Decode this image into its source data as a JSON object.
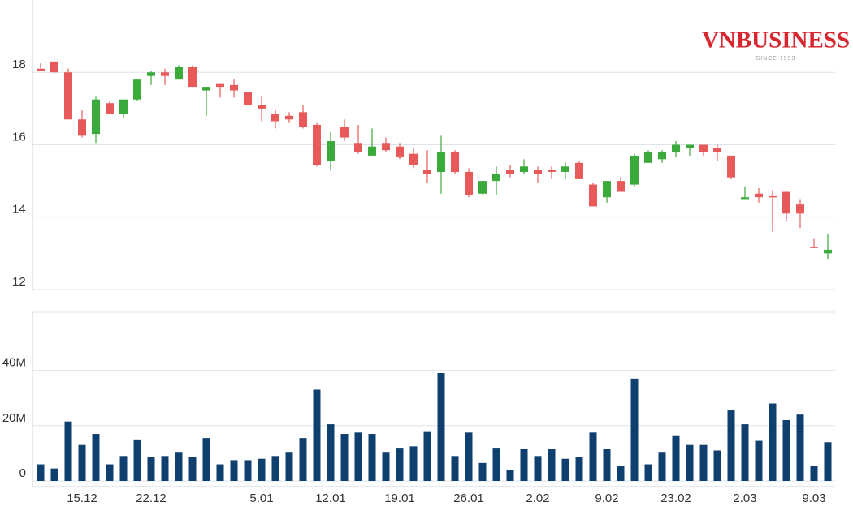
{
  "logo": {
    "text": "VNBUSINESS",
    "tagline": "SINCE 1993"
  },
  "chart_data": [
    {
      "type": "candlestick",
      "up_color": "#3aaa3a",
      "down_color": "#e85a5a",
      "open": [
        18.1,
        18.3,
        18.0,
        16.7,
        16.3,
        17.15,
        16.85,
        17.25,
        17.9,
        18.0,
        17.8,
        18.15,
        17.5,
        17.7,
        17.65,
        17.45,
        17.1,
        16.85,
        16.8,
        16.9,
        16.55,
        15.55,
        16.5,
        16.05,
        15.7,
        16.05,
        15.95,
        15.75,
        15.3,
        15.25,
        15.8,
        15.25,
        14.65,
        15.0,
        15.3,
        15.25,
        15.3,
        15.3,
        15.25,
        15.5,
        14.9,
        14.55,
        15.0,
        14.9,
        15.5,
        15.6,
        15.8,
        15.9,
        16.0,
        15.9,
        15.7,
        14.5,
        14.65,
        14.58,
        14.7,
        14.35,
        13.18,
        13.0
      ],
      "high": [
        18.25,
        18.3,
        18.1,
        16.95,
        17.35,
        17.2,
        17.25,
        17.8,
        18.05,
        18.1,
        18.2,
        18.2,
        17.6,
        17.7,
        17.8,
        17.45,
        17.35,
        16.95,
        16.9,
        17.1,
        16.6,
        16.35,
        16.7,
        16.55,
        16.45,
        16.2,
        16.05,
        15.9,
        15.85,
        16.25,
        15.85,
        15.35,
        15.0,
        15.4,
        15.45,
        15.6,
        15.4,
        15.4,
        15.5,
        15.55,
        14.95,
        15.0,
        15.1,
        15.75,
        15.85,
        15.85,
        16.1,
        16.0,
        16.0,
        16.0,
        15.7,
        14.85,
        14.8,
        14.75,
        14.7,
        14.5,
        13.4,
        13.55
      ],
      "low": [
        18.05,
        18.0,
        16.7,
        16.2,
        16.05,
        16.85,
        16.75,
        17.2,
        17.65,
        17.65,
        17.8,
        17.6,
        16.8,
        17.3,
        17.3,
        17.1,
        16.65,
        16.45,
        16.6,
        16.45,
        15.4,
        15.3,
        16.1,
        15.75,
        15.7,
        15.8,
        15.6,
        15.35,
        14.95,
        14.65,
        15.2,
        14.55,
        14.6,
        14.6,
        15.1,
        15.2,
        14.95,
        15.05,
        15.05,
        15.05,
        14.3,
        14.4,
        14.7,
        14.85,
        15.5,
        15.5,
        15.65,
        15.7,
        15.7,
        15.55,
        15.05,
        14.5,
        14.4,
        13.6,
        13.9,
        13.7,
        13.15,
        12.85
      ],
      "close": [
        18.05,
        18.0,
        16.7,
        16.25,
        17.25,
        16.85,
        17.25,
        17.8,
        18.0,
        17.9,
        18.15,
        17.6,
        17.6,
        17.6,
        17.5,
        17.1,
        17.0,
        16.65,
        16.7,
        16.5,
        15.45,
        16.1,
        16.2,
        15.8,
        15.95,
        15.85,
        15.65,
        15.45,
        15.2,
        15.8,
        15.25,
        14.6,
        15.0,
        15.2,
        15.2,
        15.4,
        15.2,
        15.25,
        15.4,
        15.05,
        14.3,
        15.0,
        14.7,
        15.7,
        15.8,
        15.8,
        16.0,
        16.0,
        15.8,
        15.8,
        15.1,
        14.55,
        14.55,
        14.55,
        14.1,
        14.1,
        13.15,
        13.1
      ],
      "ylim": [
        12,
        20
      ],
      "yticks": [
        12,
        14,
        16,
        18
      ],
      "grid": true
    },
    {
      "type": "bar",
      "color": "#0f3f6e",
      "categories": [
        null,
        null,
        null,
        "15.12",
        null,
        null,
        null,
        null,
        "22.12",
        null,
        null,
        null,
        null,
        null,
        null,
        null,
        "5.01",
        null,
        null,
        null,
        null,
        "12.01",
        null,
        null,
        null,
        null,
        "19.01",
        null,
        null,
        null,
        null,
        "26.01",
        null,
        null,
        null,
        null,
        "2.02",
        null,
        null,
        null,
        null,
        "9.02",
        null,
        null,
        null,
        null,
        "23.02",
        null,
        null,
        null,
        null,
        "2.03",
        null,
        null,
        null,
        null,
        "9.03",
        null
      ],
      "values": [
        6000000,
        4500000,
        21500000,
        13000000,
        17000000,
        6000000,
        9000000,
        15000000,
        8500000,
        9000000,
        10500000,
        8500000,
        15500000,
        6000000,
        7500000,
        7500000,
        8000000,
        9000000,
        10500000,
        15500000,
        33000000,
        20500000,
        17000000,
        17500000,
        17000000,
        10500000,
        12000000,
        12500000,
        18000000,
        39000000,
        9000000,
        17500000,
        6500000,
        12000000,
        4000000,
        11500000,
        9000000,
        11500000,
        8000000,
        8500000,
        17500000,
        11500000,
        5500000,
        37000000,
        6000000,
        10500000,
        16500000,
        13000000,
        13000000,
        11000000,
        25500000,
        20500000,
        14500000,
        28000000,
        22000000,
        24000000,
        5500000,
        14000000
      ],
      "ylim": [
        0,
        61000000
      ],
      "yticks": [
        {
          "value": 0,
          "label": "0"
        },
        {
          "value": 20000000,
          "label": "20M"
        },
        {
          "value": 40000000,
          "label": "40M"
        }
      ],
      "grid": true
    }
  ]
}
